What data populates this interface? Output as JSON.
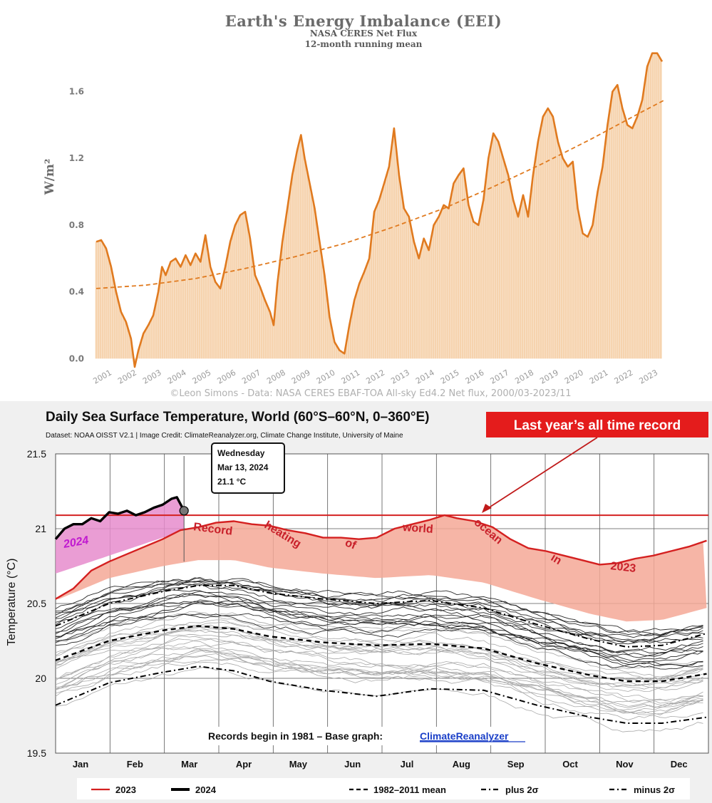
{
  "chart_data": [
    {
      "type": "bar",
      "title": "Earth's Energy Imbalance (EEI)",
      "subtitle": "NASA CERES Net Flux",
      "subtitle2": "12-month running mean",
      "ylabel": "W/m²",
      "credit": "©Leon Simons - Data: NASA CERES EBAF-TOA All-sky Ed4.2 Net flux, 2000/03-2023/11",
      "ylim": [
        -0.05,
        1.85
      ],
      "yticks": [
        "0.0",
        "0.4",
        "0.8",
        "1.2",
        "1.6"
      ],
      "ytick_values": [
        0.0,
        0.4,
        0.8,
        1.2,
        1.6
      ],
      "xlim": [
        2001.0,
        2024.0
      ],
      "xticks": [
        "2001",
        "2002",
        "2003",
        "2004",
        "2005",
        "2006",
        "2007",
        "2008",
        "2009",
        "2010",
        "2011",
        "2012",
        "2013",
        "2014",
        "2015",
        "2016",
        "2017",
        "2018",
        "2019",
        "2020",
        "2021",
        "2022",
        "2023"
      ],
      "series": [
        {
          "style": "bars and line",
          "color": "#e07a1f",
          "bar_color": "#f6d3ae",
          "points": [
            [
              2001.0,
              0.7
            ],
            [
              2001.2,
              0.71
            ],
            [
              2001.4,
              0.66
            ],
            [
              2001.6,
              0.55
            ],
            [
              2001.8,
              0.4
            ],
            [
              2002.0,
              0.28
            ],
            [
              2002.2,
              0.22
            ],
            [
              2002.4,
              0.12
            ],
            [
              2002.55,
              -0.05
            ],
            [
              2002.7,
              0.05
            ],
            [
              2002.9,
              0.15
            ],
            [
              2003.1,
              0.2
            ],
            [
              2003.3,
              0.26
            ],
            [
              2003.5,
              0.4
            ],
            [
              2003.65,
              0.55
            ],
            [
              2003.8,
              0.5
            ],
            [
              2004.0,
              0.58
            ],
            [
              2004.2,
              0.6
            ],
            [
              2004.4,
              0.55
            ],
            [
              2004.6,
              0.62
            ],
            [
              2004.8,
              0.56
            ],
            [
              2005.0,
              0.63
            ],
            [
              2005.2,
              0.58
            ],
            [
              2005.4,
              0.74
            ],
            [
              2005.6,
              0.55
            ],
            [
              2005.8,
              0.46
            ],
            [
              2006.0,
              0.42
            ],
            [
              2006.2,
              0.55
            ],
            [
              2006.4,
              0.7
            ],
            [
              2006.6,
              0.8
            ],
            [
              2006.8,
              0.86
            ],
            [
              2007.0,
              0.88
            ],
            [
              2007.2,
              0.72
            ],
            [
              2007.4,
              0.5
            ],
            [
              2007.6,
              0.43
            ],
            [
              2007.8,
              0.35
            ],
            [
              2008.0,
              0.28
            ],
            [
              2008.15,
              0.2
            ],
            [
              2008.3,
              0.45
            ],
            [
              2008.5,
              0.7
            ],
            [
              2008.7,
              0.9
            ],
            [
              2008.9,
              1.1
            ],
            [
              2009.1,
              1.25
            ],
            [
              2009.25,
              1.34
            ],
            [
              2009.4,
              1.2
            ],
            [
              2009.6,
              1.05
            ],
            [
              2009.8,
              0.9
            ],
            [
              2010.0,
              0.7
            ],
            [
              2010.2,
              0.5
            ],
            [
              2010.4,
              0.25
            ],
            [
              2010.6,
              0.1
            ],
            [
              2010.8,
              0.05
            ],
            [
              2011.0,
              0.03
            ],
            [
              2011.2,
              0.2
            ],
            [
              2011.4,
              0.35
            ],
            [
              2011.6,
              0.45
            ],
            [
              2011.8,
              0.52
            ],
            [
              2012.0,
              0.6
            ],
            [
              2012.2,
              0.88
            ],
            [
              2012.4,
              0.95
            ],
            [
              2012.6,
              1.05
            ],
            [
              2012.8,
              1.15
            ],
            [
              2013.0,
              1.38
            ],
            [
              2013.2,
              1.1
            ],
            [
              2013.4,
              0.9
            ],
            [
              2013.6,
              0.85
            ],
            [
              2013.8,
              0.7
            ],
            [
              2014.0,
              0.6
            ],
            [
              2014.2,
              0.72
            ],
            [
              2014.4,
              0.65
            ],
            [
              2014.6,
              0.8
            ],
            [
              2014.8,
              0.85
            ],
            [
              2015.0,
              0.92
            ],
            [
              2015.2,
              0.9
            ],
            [
              2015.4,
              1.05
            ],
            [
              2015.6,
              1.1
            ],
            [
              2015.8,
              1.14
            ],
            [
              2016.0,
              0.92
            ],
            [
              2016.2,
              0.82
            ],
            [
              2016.4,
              0.8
            ],
            [
              2016.6,
              0.95
            ],
            [
              2016.8,
              1.2
            ],
            [
              2017.0,
              1.35
            ],
            [
              2017.2,
              1.3
            ],
            [
              2017.4,
              1.2
            ],
            [
              2017.6,
              1.1
            ],
            [
              2017.8,
              0.95
            ],
            [
              2018.0,
              0.85
            ],
            [
              2018.2,
              0.98
            ],
            [
              2018.4,
              0.85
            ],
            [
              2018.6,
              1.1
            ],
            [
              2018.8,
              1.3
            ],
            [
              2019.0,
              1.45
            ],
            [
              2019.2,
              1.5
            ],
            [
              2019.4,
              1.45
            ],
            [
              2019.6,
              1.3
            ],
            [
              2019.8,
              1.2
            ],
            [
              2020.0,
              1.15
            ],
            [
              2020.2,
              1.18
            ],
            [
              2020.4,
              0.9
            ],
            [
              2020.6,
              0.75
            ],
            [
              2020.8,
              0.73
            ],
            [
              2021.0,
              0.8
            ],
            [
              2021.2,
              1.0
            ],
            [
              2021.4,
              1.15
            ],
            [
              2021.6,
              1.4
            ],
            [
              2021.8,
              1.6
            ],
            [
              2022.0,
              1.64
            ],
            [
              2022.2,
              1.5
            ],
            [
              2022.4,
              1.4
            ],
            [
              2022.6,
              1.38
            ],
            [
              2022.8,
              1.45
            ],
            [
              2023.0,
              1.55
            ],
            [
              2023.2,
              1.75
            ],
            [
              2023.4,
              1.83
            ],
            [
              2023.6,
              1.83
            ],
            [
              2023.8,
              1.78
            ]
          ]
        },
        {
          "style": "dashed trend",
          "color": "#e07a1f",
          "points": [
            [
              2001.0,
              0.42
            ],
            [
              2003.0,
              0.44
            ],
            [
              2005.0,
              0.48
            ],
            [
              2007.0,
              0.54
            ],
            [
              2009.0,
              0.61
            ],
            [
              2011.0,
              0.69
            ],
            [
              2013.0,
              0.79
            ],
            [
              2015.0,
              0.9
            ],
            [
              2017.0,
              1.03
            ],
            [
              2019.0,
              1.17
            ],
            [
              2021.0,
              1.32
            ],
            [
              2023.0,
              1.48
            ],
            [
              2023.9,
              1.55
            ]
          ]
        }
      ]
    },
    {
      "type": "line",
      "title": "Daily Sea Surface Temperature, World (60°S–60°N, 0–360°E)",
      "subtitle": "Dataset: NOAA OISST V2.1 | Image Credit: ClimateReanalyzer.org, Climate Change Institute, University of Maine",
      "ylabel": "Temperature (°C)",
      "ylim": [
        19.5,
        21.5
      ],
      "yticks": [
        "19.5",
        "20",
        "20.5",
        "21",
        "21.5"
      ],
      "ytick_values": [
        19.5,
        20.0,
        20.5,
        21.0,
        21.5
      ],
      "xlim": [
        0,
        366
      ],
      "categories": [
        "Jan",
        "Feb",
        "Mar",
        "Apr",
        "May",
        "Jun",
        "Jul",
        "Aug",
        "Sep",
        "Oct",
        "Nov",
        "Dec"
      ],
      "record_line_value": 21.09,
      "callout": "Last  year’s all time  record",
      "annotation_2023": "Record   heating   of   world   ocean   in   2023",
      "annotation_2024": "2024",
      "tooltip": {
        "line1": "Wednesday",
        "line2": "Mar 13, 2024",
        "line3": "21.1 °C",
        "day": 72,
        "value": 21.12
      },
      "footer_text": "Records begin in 1981 – Base graph:",
      "footer_link": "ClimateReanalyzer",
      "legend": [
        {
          "label": "2023",
          "color": "#d42020",
          "style": "solid"
        },
        {
          "label": "2024",
          "color": "#000000",
          "style": "solid-bold"
        },
        {
          "label": "1982–2011 mean",
          "color": "#000000",
          "style": "dashed"
        },
        {
          "label": "plus 2σ",
          "color": "#000000",
          "style": "dash-dot"
        },
        {
          "label": "minus 2σ",
          "color": "#000000",
          "style": "dash-dot"
        }
      ],
      "series": [
        {
          "name": "2023",
          "color": "#d42020",
          "points": [
            [
              0,
              20.53
            ],
            [
              10,
              20.6
            ],
            [
              20,
              20.72
            ],
            [
              30,
              20.78
            ],
            [
              40,
              20.83
            ],
            [
              50,
              20.88
            ],
            [
              60,
              20.93
            ],
            [
              70,
              20.99
            ],
            [
              80,
              21.01
            ],
            [
              90,
              21.04
            ],
            [
              100,
              21.05
            ],
            [
              110,
              21.03
            ],
            [
              120,
              21.02
            ],
            [
              130,
              20.99
            ],
            [
              140,
              20.97
            ],
            [
              150,
              20.94
            ],
            [
              160,
              20.94
            ],
            [
              170,
              20.93
            ],
            [
              180,
              20.94
            ],
            [
              190,
              21.0
            ],
            [
              200,
              21.03
            ],
            [
              210,
              21.06
            ],
            [
              218,
              21.09
            ],
            [
              225,
              21.07
            ],
            [
              235,
              21.05
            ],
            [
              245,
              21.01
            ],
            [
              255,
              20.93
            ],
            [
              265,
              20.87
            ],
            [
              275,
              20.85
            ],
            [
              285,
              20.82
            ],
            [
              295,
              20.79
            ],
            [
              305,
              20.76
            ],
            [
              315,
              20.77
            ],
            [
              325,
              20.8
            ],
            [
              335,
              20.82
            ],
            [
              345,
              20.85
            ],
            [
              355,
              20.88
            ],
            [
              365,
              20.92
            ]
          ]
        },
        {
          "name": "2024",
          "color": "#000000",
          "points": [
            [
              0,
              20.93
            ],
            [
              5,
              21.0
            ],
            [
              10,
              21.03
            ],
            [
              15,
              21.03
            ],
            [
              20,
              21.07
            ],
            [
              25,
              21.05
            ],
            [
              30,
              21.11
            ],
            [
              35,
              21.1
            ],
            [
              40,
              21.12
            ],
            [
              45,
              21.09
            ],
            [
              50,
              21.11
            ],
            [
              55,
              21.14
            ],
            [
              60,
              21.16
            ],
            [
              65,
              21.2
            ],
            [
              68,
              21.21
            ],
            [
              72,
              21.12
            ]
          ]
        },
        {
          "name": "1982–2011 mean",
          "color": "#000000",
          "points": [
            [
              0,
              20.12
            ],
            [
              30,
              20.25
            ],
            [
              60,
              20.32
            ],
            [
              80,
              20.35
            ],
            [
              100,
              20.33
            ],
            [
              120,
              20.28
            ],
            [
              150,
              20.24
            ],
            [
              180,
              20.22
            ],
            [
              210,
              20.23
            ],
            [
              240,
              20.2
            ],
            [
              270,
              20.1
            ],
            [
              300,
              20.02
            ],
            [
              320,
              19.98
            ],
            [
              340,
              19.98
            ],
            [
              365,
              20.03
            ]
          ]
        },
        {
          "name": "plus 2σ",
          "color": "#000000",
          "points": [
            [
              0,
              20.35
            ],
            [
              30,
              20.5
            ],
            [
              60,
              20.58
            ],
            [
              80,
              20.62
            ],
            [
              100,
              20.62
            ],
            [
              120,
              20.57
            ],
            [
              150,
              20.53
            ],
            [
              180,
              20.5
            ],
            [
              210,
              20.52
            ],
            [
              240,
              20.47
            ],
            [
              270,
              20.36
            ],
            [
              300,
              20.26
            ],
            [
              320,
              20.21
            ],
            [
              340,
              20.22
            ],
            [
              365,
              20.3
            ]
          ]
        },
        {
          "name": "minus 2σ",
          "color": "#000000",
          "points": [
            [
              0,
              19.82
            ],
            [
              30,
              19.97
            ],
            [
              60,
              20.04
            ],
            [
              80,
              20.08
            ],
            [
              100,
              20.05
            ],
            [
              120,
              19.98
            ],
            [
              150,
              19.92
            ],
            [
              180,
              19.88
            ],
            [
              210,
              19.93
            ],
            [
              240,
              19.92
            ],
            [
              270,
              19.82
            ],
            [
              300,
              19.74
            ],
            [
              320,
              19.7
            ],
            [
              340,
              19.7
            ],
            [
              365,
              19.74
            ]
          ]
        }
      ],
      "background_colors": {
        "years_1981_2022_light": "#a8a8a8",
        "years_recent": "#2a2a2a",
        "band_2023": "#f4a896",
        "band_2024": "#e68ccc",
        "callout_bg": "#e41c1c"
      }
    }
  ]
}
